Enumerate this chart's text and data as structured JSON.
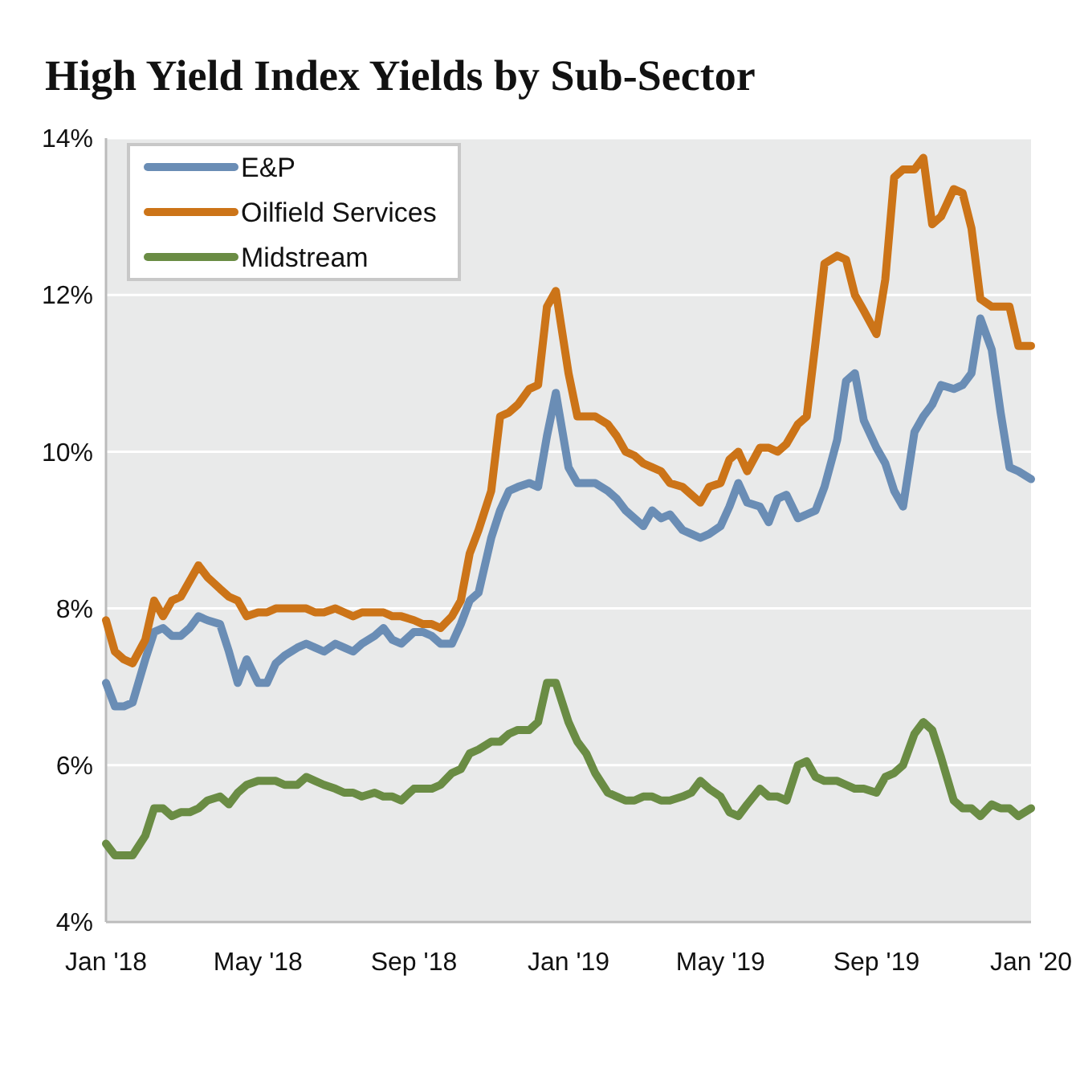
{
  "chart_data": {
    "type": "line",
    "title": "High Yield Index Yields by Sub-Sector",
    "x": [
      "2018-01-01",
      "2018-01-08",
      "2018-01-15",
      "2018-01-22",
      "2018-02-01",
      "2018-02-08",
      "2018-02-15",
      "2018-02-22",
      "2018-03-01",
      "2018-03-08",
      "2018-03-15",
      "2018-03-22",
      "2018-04-01",
      "2018-04-08",
      "2018-04-15",
      "2018-04-22",
      "2018-05-01",
      "2018-05-08",
      "2018-05-15",
      "2018-05-22",
      "2018-06-01",
      "2018-06-08",
      "2018-06-15",
      "2018-06-22",
      "2018-07-01",
      "2018-07-08",
      "2018-07-15",
      "2018-07-22",
      "2018-08-01",
      "2018-08-08",
      "2018-08-15",
      "2018-08-22",
      "2018-09-01",
      "2018-09-08",
      "2018-09-15",
      "2018-09-22",
      "2018-10-01",
      "2018-10-08",
      "2018-10-15",
      "2018-10-22",
      "2018-11-01",
      "2018-11-08",
      "2018-11-15",
      "2018-11-22",
      "2018-12-01",
      "2018-12-08",
      "2018-12-15",
      "2018-12-22",
      "2019-01-01",
      "2019-01-08",
      "2019-01-15",
      "2019-01-22",
      "2019-02-01",
      "2019-02-08",
      "2019-02-15",
      "2019-02-22",
      "2019-03-01",
      "2019-03-08",
      "2019-03-15",
      "2019-03-22",
      "2019-04-01",
      "2019-04-08",
      "2019-04-15",
      "2019-04-22",
      "2019-05-01",
      "2019-05-08",
      "2019-05-15",
      "2019-05-22",
      "2019-06-01",
      "2019-06-08",
      "2019-06-15",
      "2019-06-22",
      "2019-07-01",
      "2019-07-08",
      "2019-07-15",
      "2019-07-22",
      "2019-08-01",
      "2019-08-08",
      "2019-08-15",
      "2019-08-22",
      "2019-09-01",
      "2019-09-08",
      "2019-09-15",
      "2019-09-22",
      "2019-10-01",
      "2019-10-08",
      "2019-10-15",
      "2019-10-22",
      "2019-11-01",
      "2019-11-08",
      "2019-11-15",
      "2019-11-22",
      "2019-12-01",
      "2019-12-08",
      "2019-12-15",
      "2019-12-22",
      "2020-01-01"
    ],
    "series": [
      {
        "name": "E&P",
        "color": "#6a8db5",
        "values": [
          7.05,
          6.75,
          6.75,
          6.8,
          7.35,
          7.7,
          7.75,
          7.65,
          7.65,
          7.75,
          7.9,
          7.85,
          7.8,
          7.45,
          7.05,
          7.35,
          7.05,
          7.05,
          7.3,
          7.4,
          7.5,
          7.55,
          7.5,
          7.45,
          7.55,
          7.5,
          7.45,
          7.55,
          7.65,
          7.75,
          7.6,
          7.55,
          7.7,
          7.7,
          7.65,
          7.55,
          7.55,
          7.8,
          8.1,
          8.2,
          8.9,
          9.25,
          9.5,
          9.55,
          9.6,
          9.55,
          10.2,
          10.75,
          9.8,
          9.6,
          9.6,
          9.6,
          9.5,
          9.4,
          9.25,
          9.15,
          9.05,
          9.25,
          9.15,
          9.2,
          9.0,
          8.95,
          8.9,
          8.95,
          9.05,
          9.3,
          9.6,
          9.35,
          9.3,
          9.1,
          9.4,
          9.45,
          9.15,
          9.2,
          9.25,
          9.55,
          10.15,
          10.9,
          11.0,
          10.4,
          10.05,
          9.85,
          9.5,
          9.3,
          10.25,
          10.45,
          10.6,
          10.85,
          10.8,
          10.85,
          11.0,
          11.7,
          11.3,
          10.5,
          9.8,
          9.75,
          9.65
        ]
      },
      {
        "name": "Oilfield Services",
        "color": "#cc7418",
        "values": [
          7.85,
          7.45,
          7.35,
          7.3,
          7.6,
          8.1,
          7.9,
          8.1,
          8.15,
          8.35,
          8.55,
          8.4,
          8.25,
          8.15,
          8.1,
          7.9,
          7.95,
          7.95,
          8.0,
          8.0,
          8.0,
          8.0,
          7.95,
          7.95,
          8.0,
          7.95,
          7.9,
          7.95,
          7.95,
          7.95,
          7.9,
          7.9,
          7.85,
          7.8,
          7.8,
          7.75,
          7.9,
          8.1,
          8.7,
          9.0,
          9.5,
          10.45,
          10.5,
          10.6,
          10.8,
          10.85,
          11.85,
          12.05,
          11.0,
          10.45,
          10.45,
          10.45,
          10.35,
          10.2,
          10.0,
          9.95,
          9.85,
          9.8,
          9.75,
          9.6,
          9.55,
          9.45,
          9.35,
          9.55,
          9.6,
          9.9,
          10.0,
          9.75,
          10.05,
          10.05,
          10.0,
          10.1,
          10.35,
          10.45,
          11.4,
          12.4,
          12.5,
          12.45,
          12.0,
          11.8,
          11.5,
          12.2,
          13.5,
          13.6,
          13.6,
          13.75,
          12.9,
          13.0,
          13.35,
          13.3,
          12.85,
          11.95,
          11.85,
          11.85,
          11.85,
          11.35,
          11.35
        ]
      },
      {
        "name": "Midstream",
        "color": "#6a8c44",
        "values": [
          5.0,
          4.85,
          4.85,
          4.85,
          5.1,
          5.45,
          5.45,
          5.35,
          5.4,
          5.4,
          5.45,
          5.55,
          5.6,
          5.5,
          5.65,
          5.75,
          5.8,
          5.8,
          5.8,
          5.75,
          5.75,
          5.85,
          5.8,
          5.75,
          5.7,
          5.65,
          5.65,
          5.6,
          5.65,
          5.6,
          5.6,
          5.55,
          5.7,
          5.7,
          5.7,
          5.75,
          5.9,
          5.95,
          6.15,
          6.2,
          6.3,
          6.3,
          6.4,
          6.45,
          6.45,
          6.55,
          7.05,
          7.05,
          6.55,
          6.3,
          6.15,
          5.9,
          5.65,
          5.6,
          5.55,
          5.55,
          5.6,
          5.6,
          5.55,
          5.55,
          5.6,
          5.65,
          5.8,
          5.7,
          5.6,
          5.4,
          5.35,
          5.5,
          5.7,
          5.6,
          5.6,
          5.55,
          6.0,
          6.05,
          5.85,
          5.8,
          5.8,
          5.75,
          5.7,
          5.7,
          5.65,
          5.85,
          5.9,
          6.0,
          6.4,
          6.55,
          6.45,
          6.1,
          5.55,
          5.45,
          5.45,
          5.35,
          5.5,
          5.45,
          5.45,
          5.35,
          5.45
        ]
      }
    ],
    "xlim": [
      "2018-01-01",
      "2020-01-01"
    ],
    "xticks": [
      {
        "value": "2018-01-01",
        "label": "Jan '18"
      },
      {
        "value": "2018-05-01",
        "label": "May '18"
      },
      {
        "value": "2018-09-01",
        "label": "Sep '18"
      },
      {
        "value": "2019-01-01",
        "label": "Jan '19"
      },
      {
        "value": "2019-05-01",
        "label": "May '19"
      },
      {
        "value": "2019-09-01",
        "label": "Sep '19"
      },
      {
        "value": "2020-01-01",
        "label": "Jan '20"
      }
    ],
    "ylim": [
      4,
      14
    ],
    "yticks": [
      {
        "value": 4,
        "label": "4%"
      },
      {
        "value": 6,
        "label": "6%"
      },
      {
        "value": 8,
        "label": "8%"
      },
      {
        "value": 10,
        "label": "10%"
      },
      {
        "value": 12,
        "label": "12%"
      },
      {
        "value": 14,
        "label": "14%"
      }
    ],
    "grid": "y",
    "legend": "top left",
    "line_style": "solid",
    "marker": "none"
  }
}
